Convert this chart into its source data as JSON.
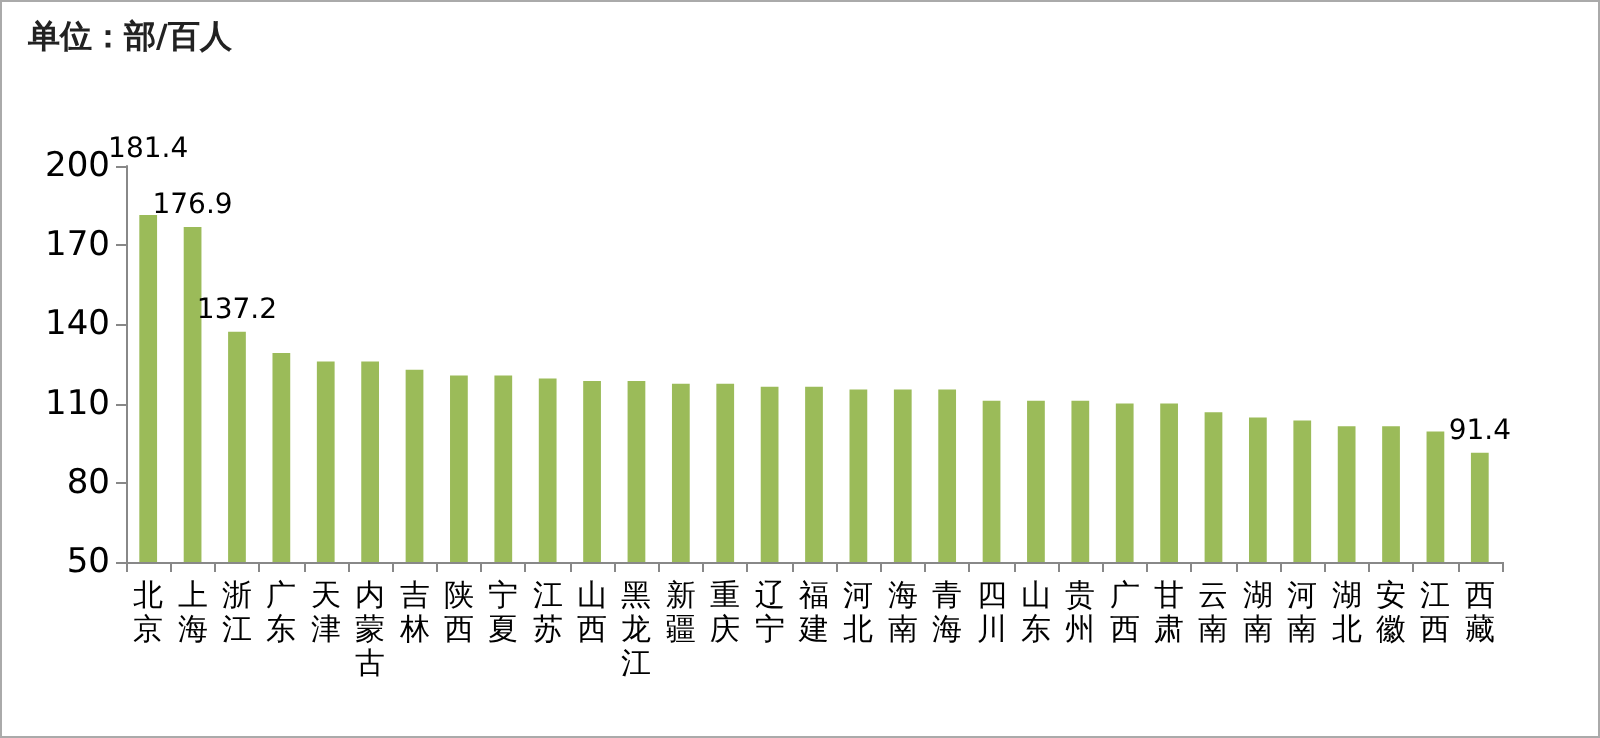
{
  "chart_data": {
    "type": "bar",
    "title": "单位：部/百人",
    "categories": [
      "北京",
      "上海",
      "浙江",
      "广东",
      "天津",
      "内蒙古",
      "吉林",
      "陕西",
      "宁夏",
      "江苏",
      "山西",
      "黑龙江",
      "新疆",
      "重庆",
      "辽宁",
      "福建",
      "河北",
      "海南",
      "青海",
      "四川",
      "山东",
      "贵州",
      "广西",
      "甘肃",
      "云南",
      "湖南",
      "河南",
      "湖北",
      "安徽",
      "江西",
      "西藏"
    ],
    "values": [
      181.4,
      176.9,
      137.2,
      129.2,
      125.9,
      125.9,
      122.8,
      120.6,
      120.6,
      119.5,
      118.6,
      118.6,
      117.5,
      117.5,
      116.4,
      116.4,
      115.3,
      115.3,
      115.3,
      111.1,
      111.1,
      111.1,
      110.0,
      110.0,
      106.7,
      104.7,
      103.6,
      101.4,
      101.4,
      99.4,
      91.4
    ],
    "value_labels": [
      "181.4",
      "176.9",
      "137.2",
      null,
      null,
      null,
      null,
      null,
      null,
      null,
      null,
      null,
      null,
      null,
      null,
      null,
      null,
      null,
      null,
      null,
      null,
      null,
      null,
      null,
      null,
      null,
      null,
      null,
      null,
      null,
      "91.4"
    ],
    "color": "#9bbb59",
    "ylim": [
      50,
      200
    ],
    "yticks": [
      50,
      80,
      110,
      140,
      170,
      200
    ],
    "grid": false
  }
}
